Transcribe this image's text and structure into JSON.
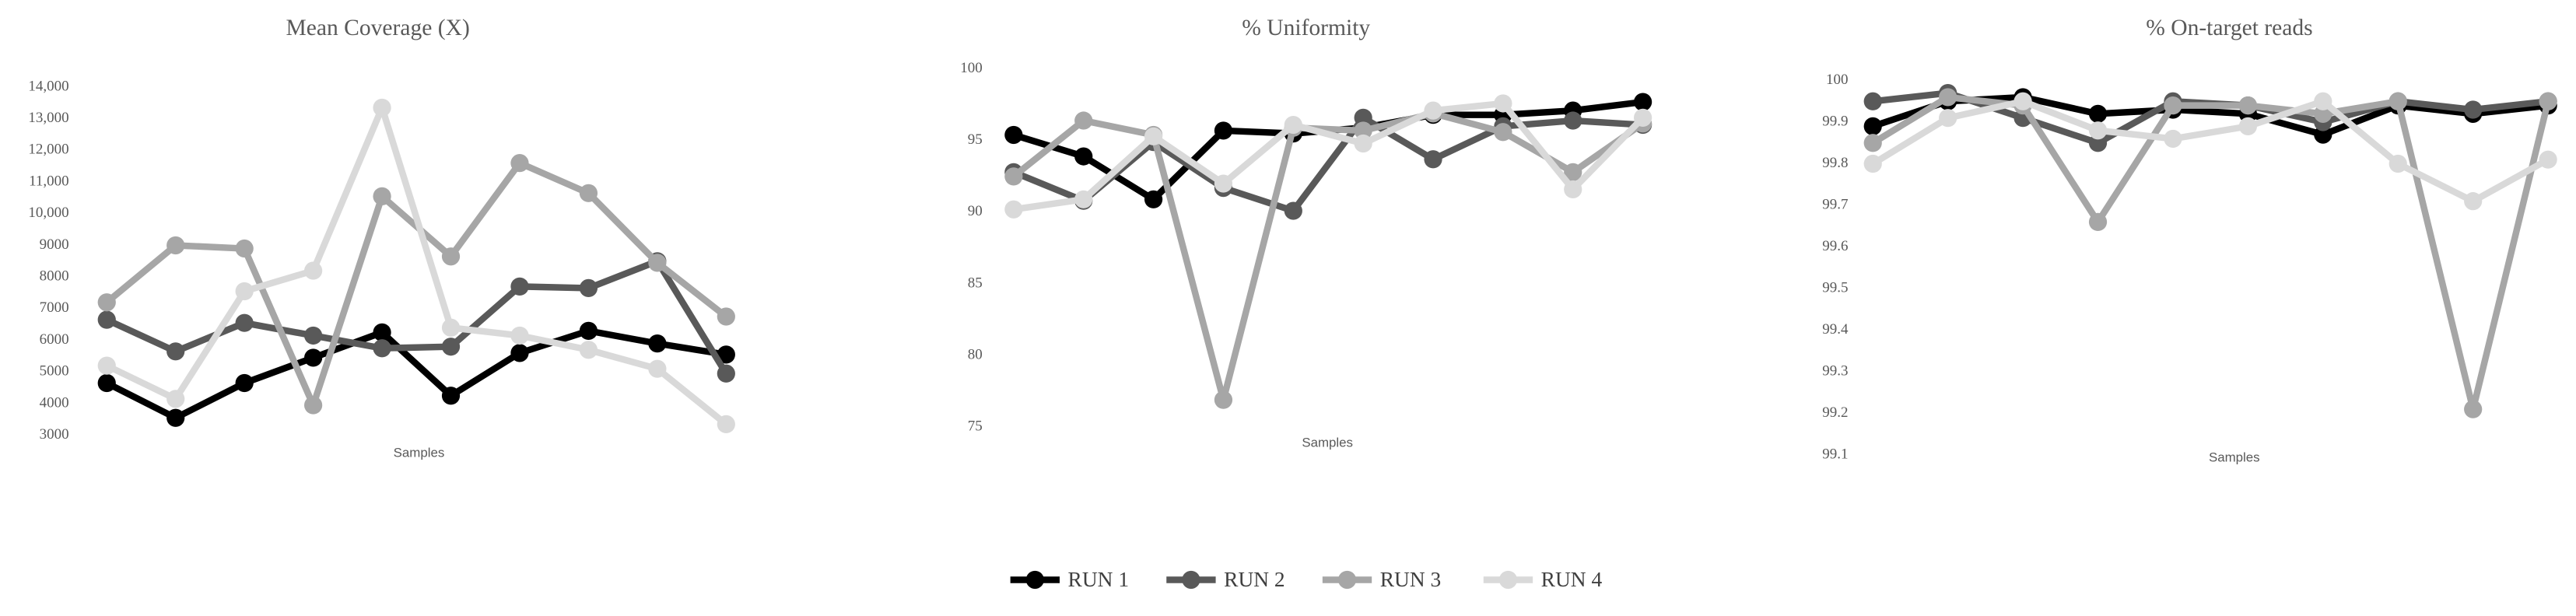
{
  "chart_data": [
    {
      "type": "line",
      "title": "Mean Coverage (X)",
      "x_label": "Samples",
      "categories": [
        null,
        null,
        null,
        null,
        null,
        null,
        null,
        null,
        null,
        null
      ],
      "ylim": [
        3000,
        14000
      ],
      "yticks": [
        3000,
        4000,
        5000,
        6000,
        7000,
        8000,
        9000,
        {
          "value": 10000,
          "label": "10,000"
        },
        {
          "value": 11000,
          "label": "11,000"
        },
        {
          "value": 12000,
          "label": "12,000"
        },
        {
          "value": 13000,
          "label": "13,000"
        },
        {
          "value": 14000,
          "label": "14,000"
        }
      ],
      "series": [
        {
          "name": "RUN 1",
          "color": "#000000",
          "values": [
            4650,
            3550,
            4650,
            5450,
            6250,
            4250,
            5600,
            6300,
            5900,
            5550
          ]
        },
        {
          "name": "RUN 2",
          "color": "#595959",
          "values": [
            6650,
            5650,
            6550,
            6150,
            5750,
            5800,
            7700,
            7650,
            8500,
            4950
          ]
        },
        {
          "name": "RUN 3",
          "color": "#a6a6a6",
          "values": [
            7200,
            9000,
            8900,
            3950,
            10550,
            8650,
            11600,
            10650,
            8450,
            6750
          ]
        },
        {
          "name": "RUN 4",
          "color": "#d9d9d9",
          "values": [
            5200,
            4150,
            7550,
            8200,
            13350,
            6400,
            6150,
            5700,
            5100,
            3350
          ]
        }
      ]
    },
    {
      "type": "line",
      "title": "% Uniformity",
      "x_label": "Samples",
      "categories": [
        null,
        null,
        null,
        null,
        null,
        null,
        null,
        null,
        null,
        null
      ],
      "ylim": [
        75,
        100
      ],
      "yticks": [
        75,
        80,
        85,
        90,
        95,
        100
      ],
      "series": [
        {
          "color": "#000000",
          "values": [
            95.4,
            93.9,
            90.9,
            95.7,
            95.5,
            95.9,
            96.8,
            96.8,
            97.1,
            97.7
          ]
        },
        {
          "color": "#595959",
          "values": [
            92.8,
            90.8,
            94.9,
            91.7,
            90.1,
            96.6,
            93.7,
            96.0,
            96.4,
            96.1
          ]
        },
        {
          "color": "#a6a6a6",
          "values": [
            92.5,
            96.4,
            95.4,
            76.9,
            95.9,
            95.7,
            96.9,
            95.6,
            92.8,
            96.2
          ]
        },
        {
          "color": "#d9d9d9",
          "values": [
            90.2,
            90.9,
            95.3,
            92.0,
            96.1,
            94.8,
            97.1,
            97.6,
            91.6,
            96.6
          ]
        }
      ]
    },
    {
      "type": "line",
      "title": "% On-target reads",
      "x_label": "Samples",
      "categories": [
        null,
        null,
        null,
        null,
        null,
        null,
        null,
        null,
        null,
        null
      ],
      "ylim": [
        99.1,
        100
      ],
      "yticks": [
        99.1,
        99.2,
        99.3,
        99.4,
        99.5,
        99.6,
        99.7,
        99.8,
        99.9,
        100
      ],
      "series": [
        {
          "color": "#000000",
          "values": [
            99.89,
            99.95,
            99.96,
            99.92,
            99.93,
            99.92,
            99.87,
            99.94,
            99.92,
            99.94
          ]
        },
        {
          "color": "#595959",
          "values": [
            99.95,
            99.97,
            99.91,
            99.85,
            99.95,
            99.94,
            99.9,
            99.95,
            99.93,
            99.95
          ]
        },
        {
          "color": "#a6a6a6",
          "values": [
            99.85,
            99.96,
            99.94,
            99.66,
            99.94,
            99.94,
            99.92,
            99.95,
            99.21,
            99.95
          ]
        },
        {
          "color": "#d9d9d9",
          "values": [
            99.8,
            99.91,
            99.95,
            99.88,
            99.86,
            99.89,
            99.95,
            99.8,
            99.71,
            99.81
          ]
        }
      ]
    }
  ]
}
